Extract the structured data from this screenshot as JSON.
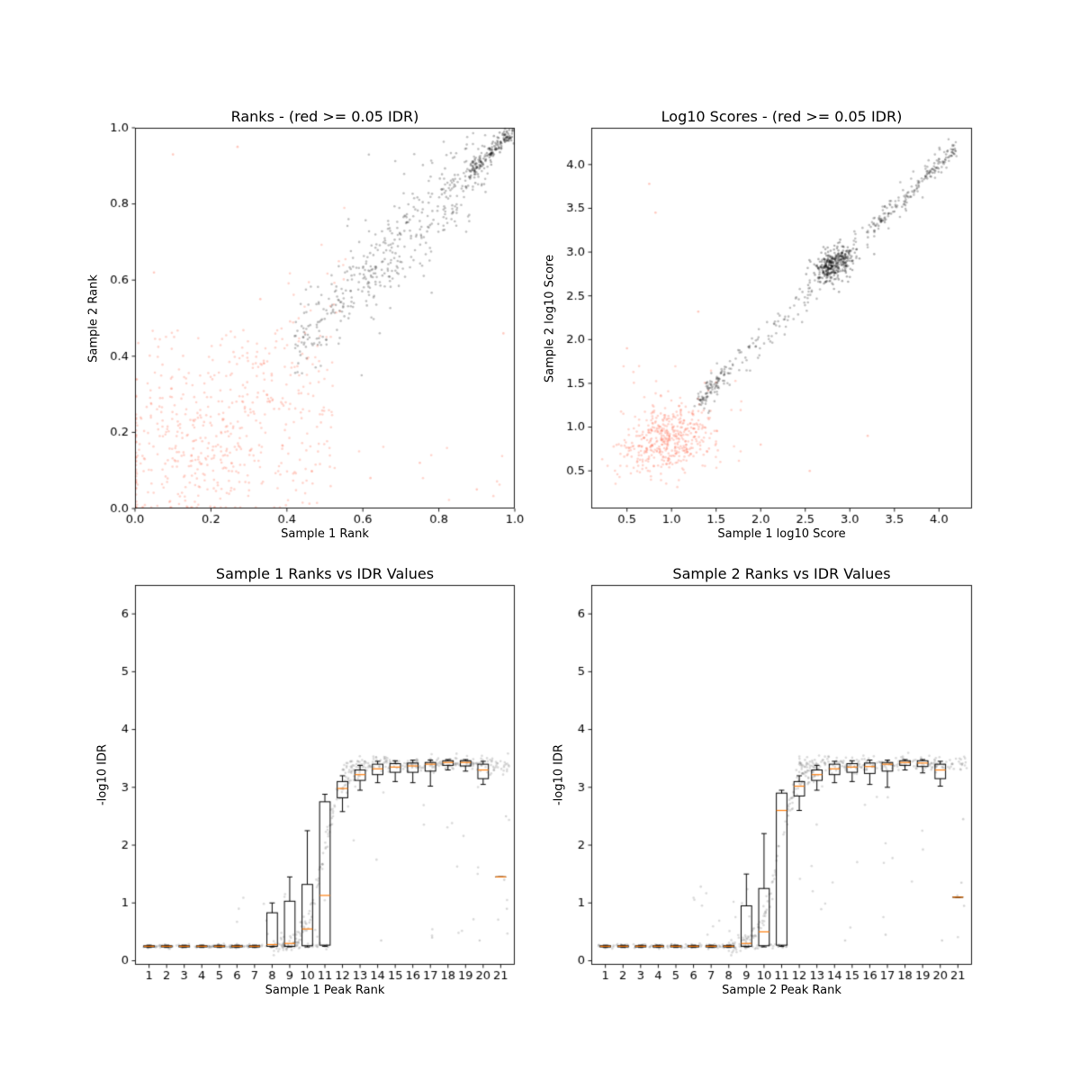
{
  "figure": {
    "background": "#ffffff"
  },
  "colors": {
    "frame": "#000000",
    "tick_text": "#000000",
    "box_line": "#000000",
    "median_line": "#ff7f0e",
    "significant_points": "rgba(0,0,0,0.25)",
    "insignificant_points": "rgba(255,99,71,0.28)",
    "idr_points": "rgba(128,128,128,0.3)"
  },
  "chart_data": [
    {
      "id": "rank-scatter",
      "type": "scatter",
      "title": "Ranks - (red >= 0.05 IDR)",
      "xlabel": "Sample 1 Rank",
      "ylabel": "Sample 2 Rank",
      "xlim": [
        0.0,
        1.0
      ],
      "ylim": [
        0.0,
        1.0
      ],
      "xticks": [
        0.0,
        0.2,
        0.4,
        0.6,
        0.8,
        1.0
      ],
      "xtick_labels": [
        "0.0",
        "0.2",
        "0.4",
        "0.6",
        "0.8",
        "1.0"
      ],
      "yticks": [
        0.0,
        0.2,
        0.4,
        0.6,
        0.8,
        1.0
      ],
      "ytick_labels": [
        "0.0",
        "0.2",
        "0.4",
        "0.6",
        "0.8",
        "1.0"
      ],
      "grid": false,
      "legend": null,
      "point_clusters": [
        {
          "kind": "uniform",
          "x0": 0.003,
          "x1": 0.52,
          "y0": 0.003,
          "y1": 0.47,
          "count": 260,
          "color": "rgba(255,99,71,0.28)"
        },
        {
          "kind": "blob",
          "cx": 0.15,
          "cy": 0.15,
          "sx": 0.13,
          "sy": 0.12,
          "corr": 0.2,
          "count": 240,
          "color": "rgba(255,99,71,0.28)",
          "clamp": [
            0.003,
            0.997,
            0.003,
            0.997
          ]
        },
        {
          "kind": "diag",
          "x0": 0.28,
          "x1": 0.56,
          "spread": 0.09,
          "count": 70,
          "color": "rgba(255,99,71,0.28)",
          "clamp": [
            0,
            1,
            0,
            1
          ]
        },
        {
          "kind": "uniform",
          "x0": 0.55,
          "x1": 0.99,
          "y0": 0.01,
          "y1": 0.2,
          "count": 10,
          "color": "rgba(255,99,71,0.28)"
        },
        {
          "kind": "points",
          "pts": [
            [
              0.1,
              0.93
            ],
            [
              0.27,
              0.95
            ],
            [
              0.05,
              0.62
            ],
            [
              0.33,
              0.55
            ],
            [
              0.62,
              0.08
            ],
            [
              0.75,
              0.12
            ],
            [
              0.9,
              0.05
            ],
            [
              0.97,
              0.46
            ]
          ],
          "color": "rgba(255,99,71,0.35)"
        },
        {
          "kind": "diag",
          "x0": 0.42,
          "x1": 0.93,
          "spread": 0.05,
          "count": 380,
          "color": "rgba(0,0,0,0.25)",
          "clamp": [
            0,
            1,
            0,
            1
          ]
        },
        {
          "kind": "diag",
          "x0": 0.55,
          "x1": 0.9,
          "spread": 0.095,
          "count": 70,
          "color": "rgba(0,0,0,0.25)",
          "clamp": [
            0,
            1,
            0,
            1
          ]
        },
        {
          "kind": "diag",
          "x0": 0.88,
          "x1": 0.999,
          "spread": 0.012,
          "count": 170,
          "color": "rgba(0,0,0,0.3)",
          "clamp": [
            0,
            1,
            0,
            1
          ]
        }
      ]
    },
    {
      "id": "log10-score-scatter",
      "type": "scatter",
      "title": "Log10 Scores - (red >= 0.05 IDR)",
      "xlabel": "Sample 1 log10 Score",
      "ylabel": "Sample 2 log10 Score",
      "xlim": [
        0.1,
        4.37
      ],
      "ylim": [
        0.07,
        4.42
      ],
      "xticks": [
        0.5,
        1.0,
        1.5,
        2.0,
        2.5,
        3.0,
        3.5,
        4.0
      ],
      "xtick_labels": [
        "0.5",
        "1.0",
        "1.5",
        "2.0",
        "2.5",
        "3.0",
        "3.5",
        "4.0"
      ],
      "yticks": [
        0.5,
        1.0,
        1.5,
        2.0,
        2.5,
        3.0,
        3.5,
        4.0
      ],
      "ytick_labels": [
        "0.5",
        "1.0",
        "1.5",
        "2.0",
        "2.5",
        "3.0",
        "3.5",
        "4.0"
      ],
      "grid": false,
      "legend": null,
      "point_clusters": [
        {
          "kind": "blob",
          "cx": 0.95,
          "cy": 0.85,
          "sx": 0.24,
          "sy": 0.2,
          "corr": 0.3,
          "count": 430,
          "color": "rgba(255,99,71,0.28)",
          "clamp": [
            0.18,
            4.3,
            0.18,
            4.3
          ]
        },
        {
          "kind": "uniform",
          "x0": 0.35,
          "x1": 1.8,
          "y0": 0.3,
          "y1": 1.7,
          "count": 45,
          "color": "rgba(255,99,71,0.28)"
        },
        {
          "kind": "points",
          "pts": [
            [
              0.75,
              3.78
            ],
            [
              0.82,
              3.45
            ],
            [
              1.3,
              2.32
            ],
            [
              0.5,
              1.9
            ],
            [
              2.0,
              0.8
            ],
            [
              2.55,
              0.5
            ],
            [
              3.2,
              0.9
            ]
          ],
          "color": "rgba(255,99,71,0.35)"
        },
        {
          "kind": "diag",
          "x0": 1.3,
          "x1": 4.2,
          "spread": 0.1,
          "count": 280,
          "color": "rgba(0,0,0,0.25)",
          "clamp": [
            0.15,
            4.35,
            0.15,
            4.35
          ]
        },
        {
          "kind": "diag",
          "x0": 1.25,
          "x1": 1.6,
          "spread": 0.05,
          "count": 60,
          "color": "rgba(0,0,0,0.25)",
          "clamp": [
            0.15,
            4.35,
            0.15,
            4.35
          ]
        },
        {
          "kind": "blob",
          "cx": 2.82,
          "cy": 2.86,
          "sx": 0.11,
          "sy": 0.1,
          "corr": 0.4,
          "count": 300,
          "color": "rgba(0,0,0,0.3)",
          "clamp": [
            0.15,
            4.35,
            0.15,
            4.35
          ]
        },
        {
          "kind": "diag",
          "x0": 3.2,
          "x1": 4.2,
          "spread": 0.04,
          "count": 90,
          "color": "rgba(0,0,0,0.28)",
          "clamp": [
            0.15,
            4.35,
            0.15,
            4.35
          ]
        }
      ]
    },
    {
      "id": "sample1-rank-idr-box",
      "type": "box",
      "title": "Sample 1 Ranks vs IDR Values",
      "xlabel": "Sample 1 Peak Rank",
      "ylabel": "-log10 IDR",
      "xlim": [
        0.2,
        21.8
      ],
      "ylim": [
        -0.07,
        6.5
      ],
      "xticks": [
        1,
        2,
        3,
        4,
        5,
        6,
        7,
        8,
        9,
        10,
        11,
        12,
        13,
        14,
        15,
        16,
        17,
        18,
        19,
        20,
        21
      ],
      "xtick_labels": [
        "1",
        "2",
        "3",
        "4",
        "5",
        "6",
        "7",
        "8",
        "9",
        "10",
        "11",
        "12",
        "13",
        "14",
        "15",
        "16",
        "17",
        "18",
        "19",
        "20",
        "21"
      ],
      "yticks": [
        0,
        1,
        2,
        3,
        4,
        5,
        6
      ],
      "ytick_labels": [
        "0",
        "1",
        "2",
        "3",
        "4",
        "5",
        "6"
      ],
      "grid": false,
      "box_width": 0.6,
      "box_color": "#000000",
      "median_color": "#ff7f0e",
      "boxes": [
        {
          "pos": 1,
          "lo": 0.23,
          "q1": 0.24,
          "med": 0.25,
          "q3": 0.26,
          "hi": 0.27
        },
        {
          "pos": 2,
          "lo": 0.23,
          "q1": 0.24,
          "med": 0.25,
          "q3": 0.26,
          "hi": 0.27
        },
        {
          "pos": 3,
          "lo": 0.23,
          "q1": 0.24,
          "med": 0.25,
          "q3": 0.26,
          "hi": 0.27
        },
        {
          "pos": 4,
          "lo": 0.23,
          "q1": 0.24,
          "med": 0.25,
          "q3": 0.26,
          "hi": 0.27
        },
        {
          "pos": 5,
          "lo": 0.23,
          "q1": 0.24,
          "med": 0.25,
          "q3": 0.26,
          "hi": 0.27
        },
        {
          "pos": 6,
          "lo": 0.23,
          "q1": 0.24,
          "med": 0.25,
          "q3": 0.26,
          "hi": 0.27
        },
        {
          "pos": 7,
          "lo": 0.23,
          "q1": 0.24,
          "med": 0.25,
          "q3": 0.26,
          "hi": 0.27
        },
        {
          "pos": 8,
          "lo": 0.24,
          "q1": 0.25,
          "med": 0.28,
          "q3": 0.83,
          "hi": 1.0
        },
        {
          "pos": 9,
          "lo": 0.24,
          "q1": 0.25,
          "med": 0.3,
          "q3": 1.03,
          "hi": 1.45
        },
        {
          "pos": 10,
          "lo": 0.24,
          "q1": 0.26,
          "med": 0.55,
          "q3": 1.32,
          "hi": 2.25
        },
        {
          "pos": 11,
          "lo": 0.25,
          "q1": 0.27,
          "med": 1.13,
          "q3": 2.75,
          "hi": 2.88
        },
        {
          "pos": 12,
          "lo": 2.58,
          "q1": 2.82,
          "med": 2.98,
          "q3": 3.1,
          "hi": 3.2
        },
        {
          "pos": 13,
          "lo": 2.95,
          "q1": 3.12,
          "med": 3.22,
          "q3": 3.3,
          "hi": 3.38
        },
        {
          "pos": 14,
          "lo": 3.08,
          "q1": 3.22,
          "med": 3.32,
          "q3": 3.4,
          "hi": 3.45
        },
        {
          "pos": 15,
          "lo": 3.1,
          "q1": 3.26,
          "med": 3.35,
          "q3": 3.41,
          "hi": 3.46
        },
        {
          "pos": 16,
          "lo": 3.08,
          "q1": 3.26,
          "med": 3.37,
          "q3": 3.42,
          "hi": 3.47
        },
        {
          "pos": 17,
          "lo": 3.02,
          "q1": 3.28,
          "med": 3.4,
          "q3": 3.43,
          "hi": 3.47
        },
        {
          "pos": 18,
          "lo": 3.3,
          "q1": 3.38,
          "med": 3.43,
          "q3": 3.46,
          "hi": 3.48
        },
        {
          "pos": 19,
          "lo": 3.28,
          "q1": 3.37,
          "med": 3.43,
          "q3": 3.46,
          "hi": 3.48
        },
        {
          "pos": 20,
          "lo": 3.05,
          "q1": 3.15,
          "med": 3.3,
          "q3": 3.4,
          "hi": 3.45
        },
        {
          "pos": 21,
          "lo": 1.45,
          "q1": 1.45,
          "med": 1.45,
          "q3": 1.45,
          "hi": 1.45
        }
      ],
      "point_clusters": [
        {
          "kind": "hline",
          "x0": 0.6,
          "x1": 11.4,
          "y": 0.25,
          "jitter": 0.02,
          "count": 150,
          "color": "rgba(128,128,128,0.3)"
        },
        {
          "kind": "sigmoid",
          "x0": 8.0,
          "x1": 13.0,
          "ylo": 0.25,
          "yhi": 3.33,
          "xmid": 10.9,
          "k": 2.0,
          "jitter": 0.1,
          "count": 140,
          "color": "rgba(128,128,128,0.3)"
        },
        {
          "kind": "hline",
          "x0": 12.0,
          "x1": 21.5,
          "y": 3.4,
          "jitter": 0.07,
          "count": 240,
          "color": "rgba(128,128,128,0.3)"
        },
        {
          "kind": "uniform",
          "x0": 12.0,
          "x1": 21.5,
          "y0": 0.35,
          "y1": 3.05,
          "count": 22,
          "color": "rgba(128,128,128,0.3)"
        },
        {
          "kind": "uniform",
          "x0": 6.0,
          "x1": 11.0,
          "y0": 0.4,
          "y1": 1.3,
          "count": 14,
          "color": "rgba(128,128,128,0.3)"
        },
        {
          "kind": "points",
          "pts": [
            [
              21.3,
              2.5
            ],
            [
              21.2,
              1.4
            ],
            [
              21.35,
              0.9
            ],
            [
              14.2,
              0.35
            ],
            [
              17.1,
              0.4
            ],
            [
              19.8,
              0.35
            ]
          ],
          "color": "rgba(128,128,128,0.35)"
        }
      ]
    },
    {
      "id": "sample2-rank-idr-box",
      "type": "box",
      "title": "Sample 2 Ranks vs IDR Values",
      "xlabel": "Sample 2 Peak Rank",
      "ylabel": "-log10 IDR",
      "xlim": [
        0.2,
        21.8
      ],
      "ylim": [
        -0.07,
        6.5
      ],
      "xticks": [
        1,
        2,
        3,
        4,
        5,
        6,
        7,
        8,
        9,
        10,
        11,
        12,
        13,
        14,
        15,
        16,
        17,
        18,
        19,
        20,
        21
      ],
      "xtick_labels": [
        "1",
        "2",
        "3",
        "4",
        "5",
        "6",
        "7",
        "8",
        "9",
        "10",
        "11",
        "12",
        "13",
        "14",
        "15",
        "16",
        "17",
        "18",
        "19",
        "20",
        "21"
      ],
      "yticks": [
        0,
        1,
        2,
        3,
        4,
        5,
        6
      ],
      "ytick_labels": [
        "0",
        "1",
        "2",
        "3",
        "4",
        "5",
        "6"
      ],
      "grid": false,
      "box_width": 0.6,
      "box_color": "#000000",
      "median_color": "#ff7f0e",
      "boxes": [
        {
          "pos": 1,
          "lo": 0.23,
          "q1": 0.24,
          "med": 0.25,
          "q3": 0.26,
          "hi": 0.27
        },
        {
          "pos": 2,
          "lo": 0.23,
          "q1": 0.24,
          "med": 0.25,
          "q3": 0.26,
          "hi": 0.27
        },
        {
          "pos": 3,
          "lo": 0.23,
          "q1": 0.24,
          "med": 0.25,
          "q3": 0.26,
          "hi": 0.27
        },
        {
          "pos": 4,
          "lo": 0.23,
          "q1": 0.24,
          "med": 0.25,
          "q3": 0.26,
          "hi": 0.27
        },
        {
          "pos": 5,
          "lo": 0.23,
          "q1": 0.24,
          "med": 0.25,
          "q3": 0.26,
          "hi": 0.27
        },
        {
          "pos": 6,
          "lo": 0.23,
          "q1": 0.24,
          "med": 0.25,
          "q3": 0.26,
          "hi": 0.27
        },
        {
          "pos": 7,
          "lo": 0.23,
          "q1": 0.24,
          "med": 0.25,
          "q3": 0.26,
          "hi": 0.27
        },
        {
          "pos": 8,
          "lo": 0.23,
          "q1": 0.24,
          "med": 0.25,
          "q3": 0.26,
          "hi": 0.27
        },
        {
          "pos": 9,
          "lo": 0.24,
          "q1": 0.25,
          "med": 0.3,
          "q3": 0.95,
          "hi": 1.5
        },
        {
          "pos": 10,
          "lo": 0.24,
          "q1": 0.26,
          "med": 0.5,
          "q3": 1.25,
          "hi": 2.2
        },
        {
          "pos": 11,
          "lo": 0.25,
          "q1": 0.27,
          "med": 2.6,
          "q3": 2.9,
          "hi": 2.95
        },
        {
          "pos": 12,
          "lo": 2.6,
          "q1": 2.85,
          "med": 3.02,
          "q3": 3.1,
          "hi": 3.2
        },
        {
          "pos": 13,
          "lo": 2.95,
          "q1": 3.12,
          "med": 3.22,
          "q3": 3.3,
          "hi": 3.38
        },
        {
          "pos": 14,
          "lo": 3.08,
          "q1": 3.22,
          "med": 3.32,
          "q3": 3.4,
          "hi": 3.45
        },
        {
          "pos": 15,
          "lo": 3.1,
          "q1": 3.26,
          "med": 3.35,
          "q3": 3.41,
          "hi": 3.46
        },
        {
          "pos": 16,
          "lo": 3.05,
          "q1": 3.24,
          "med": 3.36,
          "q3": 3.42,
          "hi": 3.47
        },
        {
          "pos": 17,
          "lo": 3.0,
          "q1": 3.28,
          "med": 3.4,
          "q3": 3.43,
          "hi": 3.47
        },
        {
          "pos": 18,
          "lo": 3.3,
          "q1": 3.38,
          "med": 3.43,
          "q3": 3.46,
          "hi": 3.48
        },
        {
          "pos": 19,
          "lo": 3.25,
          "q1": 3.36,
          "med": 3.42,
          "q3": 3.46,
          "hi": 3.48
        },
        {
          "pos": 20,
          "lo": 3.02,
          "q1": 3.15,
          "med": 3.3,
          "q3": 3.4,
          "hi": 3.45
        },
        {
          "pos": 21,
          "lo": 1.1,
          "q1": 1.1,
          "med": 1.1,
          "q3": 1.1,
          "hi": 1.1
        }
      ],
      "point_clusters": [
        {
          "kind": "hline",
          "x0": 0.6,
          "x1": 11.4,
          "y": 0.25,
          "jitter": 0.02,
          "count": 150,
          "color": "rgba(128,128,128,0.3)"
        },
        {
          "kind": "sigmoid",
          "x0": 8.0,
          "x1": 13.0,
          "ylo": 0.25,
          "yhi": 3.33,
          "xmid": 10.8,
          "k": 2.0,
          "jitter": 0.1,
          "count": 140,
          "color": "rgba(128,128,128,0.3)"
        },
        {
          "kind": "hline",
          "x0": 12.0,
          "x1": 21.5,
          "y": 3.4,
          "jitter": 0.07,
          "count": 240,
          "color": "rgba(128,128,128,0.3)"
        },
        {
          "kind": "uniform",
          "x0": 12.0,
          "x1": 21.5,
          "y0": 0.35,
          "y1": 3.05,
          "count": 22,
          "color": "rgba(128,128,128,0.3)"
        },
        {
          "kind": "uniform",
          "x0": 6.0,
          "x1": 11.0,
          "y0": 0.4,
          "y1": 1.3,
          "count": 14,
          "color": "rgba(128,128,128,0.3)"
        },
        {
          "kind": "points",
          "pts": [
            [
              21.3,
              2.45
            ],
            [
              21.2,
              1.35
            ],
            [
              21.35,
              0.95
            ],
            [
              14.6,
              0.35
            ],
            [
              16.9,
              0.45
            ],
            [
              20.1,
              0.35
            ]
          ],
          "color": "rgba(128,128,128,0.35)"
        }
      ]
    }
  ]
}
